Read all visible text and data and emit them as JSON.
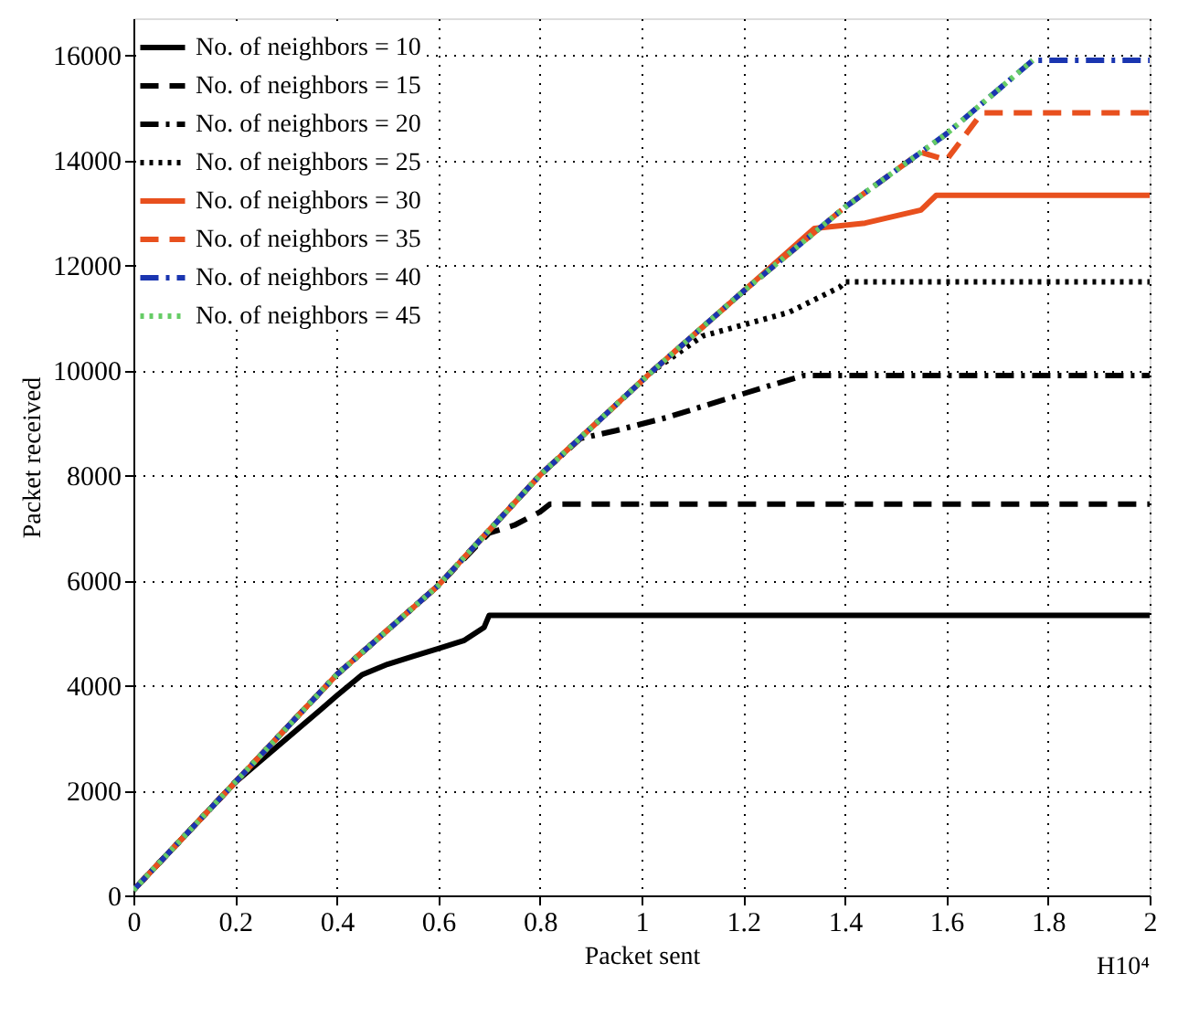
{
  "chart_data": {
    "type": "line",
    "xlabel": "Packet sent",
    "ylabel": "Packet received",
    "xlim": [
      0,
      2
    ],
    "xticks": [
      0,
      0.2,
      0.4,
      0.6,
      0.8,
      1,
      1.2,
      1.4,
      1.6,
      1.8,
      2
    ],
    "ylim": [
      0,
      16700
    ],
    "yticks": [
      0,
      2000,
      4000,
      6000,
      8000,
      10000,
      12000,
      14000,
      16000
    ],
    "grid": true,
    "legend": "top left",
    "marker": "none",
    "annotations": [
      "H10⁴"
    ],
    "series": [
      {
        "name": "No. of neighbors = 10",
        "color": "#000000",
        "line_style": "solid",
        "x": [
          0,
          0.2,
          0.37,
          0.4,
          0.45,
          0.5,
          0.55,
          0.6,
          0.65,
          0.69,
          0.7,
          2
        ],
        "values": [
          100,
          2150,
          3550,
          3800,
          4200,
          4400,
          4550,
          4700,
          4850,
          5100,
          5330,
          5330
        ]
      },
      {
        "name": "No. of neighbors = 15",
        "color": "#000000",
        "line_style": "dashed",
        "x": [
          0,
          0.2,
          0.4,
          0.6,
          0.7,
          0.75,
          0.8,
          0.82,
          2
        ],
        "values": [
          100,
          2150,
          4200,
          5900,
          6900,
          7050,
          7300,
          7450,
          7450
        ]
      },
      {
        "name": "No. of neighbors = 20",
        "color": "#000000",
        "line_style": "dashdot",
        "x": [
          0,
          0.2,
          0.4,
          0.6,
          0.8,
          0.88,
          0.95,
          1.05,
          1.15,
          1.25,
          1.32,
          2
        ],
        "values": [
          100,
          2150,
          4200,
          5900,
          8000,
          8700,
          8850,
          9100,
          9400,
          9700,
          9900,
          9900
        ]
      },
      {
        "name": "No. of neighbors = 25",
        "color": "#000000",
        "line_style": "dotted",
        "x": [
          0,
          0.2,
          0.4,
          0.6,
          0.8,
          1.02,
          1.12,
          1.29,
          1.39,
          1.4,
          2
        ],
        "values": [
          100,
          2150,
          4200,
          5900,
          8000,
          9970,
          10650,
          11100,
          11580,
          11680,
          11680
        ]
      },
      {
        "name": "No. of neighbors = 30",
        "color": "#e8501e",
        "line_style": "solid",
        "x": [
          0,
          0.2,
          0.4,
          0.6,
          0.8,
          1.02,
          1.2,
          1.34,
          1.44,
          1.55,
          1.58,
          2
        ],
        "values": [
          100,
          2150,
          4200,
          5900,
          8000,
          9970,
          11500,
          12700,
          12800,
          13050,
          13330,
          13330
        ]
      },
      {
        "name": "No. of neighbors = 35",
        "color": "#e8501e",
        "line_style": "dashed",
        "x": [
          0,
          0.2,
          0.4,
          0.6,
          0.8,
          1.02,
          1.2,
          1.4,
          1.55,
          1.6,
          1.67,
          2
        ],
        "values": [
          100,
          2150,
          4200,
          5900,
          8000,
          9970,
          11500,
          13100,
          14150,
          14000,
          14900,
          14900
        ]
      },
      {
        "name": "No. of neighbors = 40",
        "color": "#1a35b0",
        "line_style": "dashdot",
        "x": [
          0,
          0.2,
          0.4,
          0.6,
          0.8,
          1.02,
          1.2,
          1.4,
          1.6,
          1.77,
          2
        ],
        "values": [
          100,
          2150,
          4200,
          5900,
          8000,
          9970,
          11500,
          13100,
          14500,
          15900,
          15900
        ]
      },
      {
        "name": "No. of neighbors = 45",
        "color": "#66cc66",
        "line_style": "dotted",
        "x": [
          0,
          0.2,
          0.4,
          0.6,
          0.8,
          1.02,
          1.2,
          1.4,
          1.6,
          1.77
        ],
        "values": [
          100,
          2150,
          4200,
          5900,
          8000,
          9970,
          11500,
          13100,
          14500,
          15900
        ]
      }
    ]
  }
}
